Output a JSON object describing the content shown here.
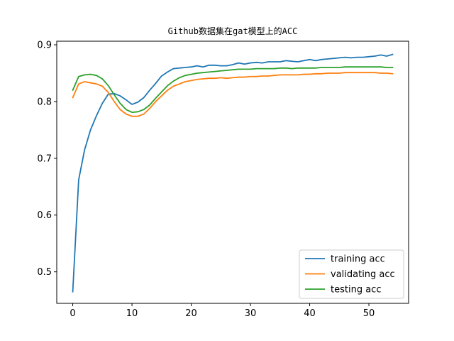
{
  "chart_data": {
    "type": "line",
    "title": "Github数据集在gat模型上的ACC",
    "xlabel": "",
    "ylabel": "",
    "xlim": [
      -2.7,
      56.7
    ],
    "ylim": [
      0.4445,
      0.9063
    ],
    "xticks": [
      0,
      10,
      20,
      30,
      40,
      50
    ],
    "yticks": [
      0.5,
      0.6,
      0.7,
      0.8,
      0.9
    ],
    "xtick_labels": [
      "0",
      "10",
      "20",
      "30",
      "40",
      "50"
    ],
    "ytick_labels": [
      "0.5",
      "0.6",
      "0.7",
      "0.8",
      "0.9"
    ],
    "grid": false,
    "legend_position": "lower right",
    "x": [
      0,
      1,
      2,
      3,
      4,
      5,
      6,
      7,
      8,
      9,
      10,
      11,
      12,
      13,
      14,
      15,
      16,
      17,
      18,
      19,
      20,
      21,
      22,
      23,
      24,
      25,
      26,
      27,
      28,
      29,
      30,
      31,
      32,
      33,
      34,
      35,
      36,
      37,
      38,
      39,
      40,
      41,
      42,
      43,
      44,
      45,
      46,
      47,
      48,
      49,
      50,
      51,
      52,
      53,
      54
    ],
    "series": [
      {
        "name": "training acc",
        "color": "#1f77b4",
        "values": [
          0.465,
          0.662,
          0.715,
          0.75,
          0.775,
          0.797,
          0.813,
          0.814,
          0.81,
          0.803,
          0.795,
          0.799,
          0.807,
          0.82,
          0.832,
          0.845,
          0.852,
          0.858,
          0.859,
          0.86,
          0.861,
          0.863,
          0.861,
          0.864,
          0.864,
          0.863,
          0.863,
          0.865,
          0.868,
          0.866,
          0.868,
          0.869,
          0.868,
          0.87,
          0.87,
          0.87,
          0.872,
          0.871,
          0.87,
          0.872,
          0.874,
          0.872,
          0.874,
          0.875,
          0.876,
          0.877,
          0.878,
          0.877,
          0.878,
          0.878,
          0.879,
          0.88,
          0.882,
          0.88,
          0.883
        ]
      },
      {
        "name": "validating acc",
        "color": "#ff7f0e",
        "values": [
          0.807,
          0.831,
          0.835,
          0.833,
          0.831,
          0.827,
          0.816,
          0.8,
          0.786,
          0.778,
          0.774,
          0.774,
          0.778,
          0.788,
          0.8,
          0.81,
          0.82,
          0.827,
          0.831,
          0.835,
          0.837,
          0.839,
          0.84,
          0.841,
          0.841,
          0.842,
          0.841,
          0.842,
          0.843,
          0.843,
          0.844,
          0.844,
          0.845,
          0.845,
          0.846,
          0.847,
          0.847,
          0.847,
          0.847,
          0.848,
          0.848,
          0.849,
          0.849,
          0.85,
          0.85,
          0.85,
          0.851,
          0.851,
          0.851,
          0.851,
          0.851,
          0.851,
          0.85,
          0.85,
          0.849
        ]
      },
      {
        "name": "testing acc",
        "color": "#2ca02c",
        "values": [
          0.82,
          0.844,
          0.847,
          0.848,
          0.846,
          0.84,
          0.828,
          0.812,
          0.797,
          0.786,
          0.781,
          0.782,
          0.786,
          0.794,
          0.806,
          0.817,
          0.828,
          0.836,
          0.842,
          0.846,
          0.848,
          0.85,
          0.851,
          0.852,
          0.853,
          0.854,
          0.855,
          0.856,
          0.857,
          0.857,
          0.857,
          0.858,
          0.858,
          0.858,
          0.858,
          0.859,
          0.859,
          0.858,
          0.859,
          0.859,
          0.859,
          0.859,
          0.86,
          0.86,
          0.86,
          0.86,
          0.861,
          0.861,
          0.861,
          0.861,
          0.861,
          0.861,
          0.861,
          0.86,
          0.86
        ]
      }
    ]
  }
}
